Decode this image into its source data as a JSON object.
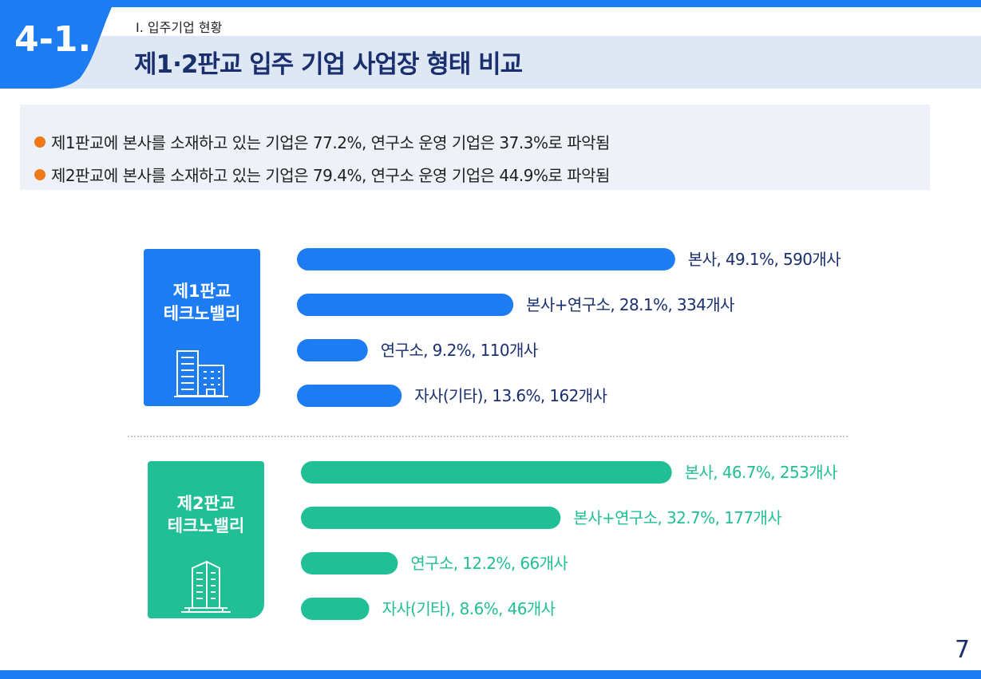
{
  "header": {
    "section_number": "4-1.",
    "breadcrumb": "I.  입주기업 현황",
    "title": "제1·2판교 입주 기업 사업장 형태 비교"
  },
  "summary": [
    "제1판교에 본사를 소재하고 있는 기업은  77.2%, 연구소 운영 기업은 37.3%로 파악됨",
    "제2판교에 본사를 소재하고 있는 기업은 79.4%, 연구소 운영 기업은 44.9%로 파악됨"
  ],
  "groups": [
    {
      "name_line1": "제1판교",
      "name_line2": "테크노밸리",
      "color": "#1e7cf2"
    },
    {
      "name_line1": "제2판교",
      "name_line2": "테크노밸리",
      "color": "#20bf95"
    }
  ],
  "page_number": "7",
  "colors": {
    "accent_blue": "#1e7cf2",
    "accent_green": "#20bf95",
    "title_navy": "#1a2f6e",
    "bullet_orange": "#f07a1a"
  },
  "chart_data": [
    {
      "type": "bar",
      "title": "제1판교 테크노밸리",
      "categories": [
        "본사",
        "본사+연구소",
        "연구소",
        "자사(기타)"
      ],
      "values": [
        49.1,
        28.1,
        9.2,
        13.6
      ],
      "counts": [
        590,
        334,
        110,
        162
      ],
      "labels": [
        "본사, 49.1%, 590개사",
        "본사+연구소, 28.1%, 334개사",
        "연구소, 9.2%, 110개사",
        "자사(기타), 13.6%, 162개사"
      ],
      "unit": "%"
    },
    {
      "type": "bar",
      "title": "제2판교 테크노밸리",
      "categories": [
        "본사",
        "본사+연구소",
        "연구소",
        "자사(기타)"
      ],
      "values": [
        46.7,
        32.7,
        12.2,
        8.6
      ],
      "counts": [
        253,
        177,
        66,
        46
      ],
      "labels": [
        "본사, 46.7%, 253개사",
        "본사+연구소, 32.7%, 177개사",
        "연구소, 12.2%, 66개사",
        "자사(기타), 8.6%, 46개사"
      ],
      "unit": "%"
    }
  ]
}
